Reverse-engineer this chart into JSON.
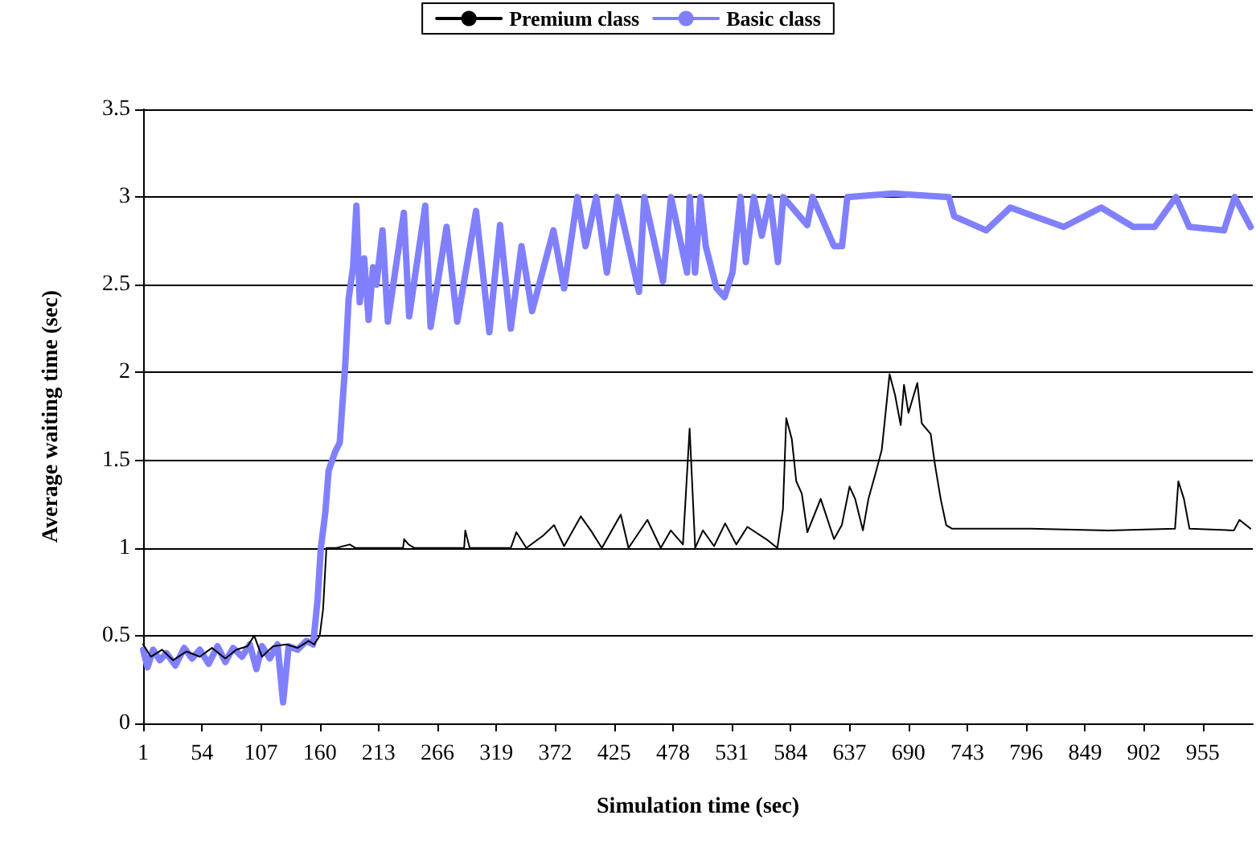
{
  "chart_data": {
    "type": "line",
    "xlabel": "Simulation time (sec)",
    "ylabel": "Average waiting time (sec)",
    "xlim": [
      1,
      1000
    ],
    "xticks": [
      1,
      54,
      107,
      160,
      213,
      266,
      319,
      372,
      425,
      478,
      531,
      584,
      637,
      690,
      743,
      796,
      849,
      902,
      955
    ],
    "ylim": [
      0,
      3.5
    ],
    "yticks": [
      0,
      0.5,
      1,
      1.5,
      2,
      2.5,
      3,
      3.5
    ],
    "grid": "y",
    "legend": "top",
    "marker": "none",
    "line_style": "solid",
    "series": [
      {
        "name": "Premium class",
        "color": "#000000",
        "x": [
          1,
          8,
          18,
          28,
          40,
          52,
          63,
          75,
          85,
          95,
          101,
          108,
          118,
          130,
          140,
          150,
          155,
          160,
          163,
          166,
          175,
          187,
          192,
          235,
          236,
          240,
          245,
          290,
          291,
          295,
          332,
          337,
          346,
          361,
          371,
          380,
          395,
          404,
          414,
          431,
          438,
          455,
          467,
          476,
          487,
          493,
          498,
          505,
          515,
          525,
          535,
          545,
          562,
          572,
          577,
          580,
          585,
          589,
          594,
          599,
          611,
          623,
          630,
          637,
          642,
          649,
          654,
          661,
          666,
          673,
          678,
          683,
          686,
          690,
          698,
          702,
          710,
          714,
          719,
          724,
          729,
          800,
          870,
          930,
          933,
          938,
          943,
          983,
          988,
          998
        ],
        "values": [
          0.45,
          0.38,
          0.42,
          0.36,
          0.41,
          0.38,
          0.43,
          0.37,
          0.42,
          0.44,
          0.5,
          0.38,
          0.44,
          0.45,
          0.43,
          0.47,
          0.45,
          0.5,
          0.65,
          1.0,
          1.0,
          1.02,
          1.0,
          1.0,
          1.05,
          1.02,
          1.0,
          1.0,
          1.1,
          1.0,
          1.0,
          1.09,
          1.0,
          1.07,
          1.13,
          1.01,
          1.18,
          1.1,
          1.0,
          1.19,
          1.0,
          1.16,
          1.0,
          1.1,
          1.02,
          1.68,
          1.0,
          1.1,
          1.01,
          1.14,
          1.02,
          1.12,
          1.05,
          1.0,
          1.22,
          1.74,
          1.62,
          1.38,
          1.31,
          1.09,
          1.28,
          1.05,
          1.13,
          1.35,
          1.28,
          1.1,
          1.28,
          1.44,
          1.56,
          1.99,
          1.87,
          1.7,
          1.93,
          1.77,
          1.94,
          1.71,
          1.65,
          1.47,
          1.28,
          1.13,
          1.11,
          1.11,
          1.1,
          1.11,
          1.38,
          1.28,
          1.11,
          1.1,
          1.16,
          1.11
        ]
      },
      {
        "name": "Basic class",
        "color": "#8080ff",
        "x": [
          1,
          5,
          10,
          16,
          22,
          30,
          38,
          45,
          52,
          60,
          68,
          75,
          82,
          90,
          97,
          103,
          108,
          115,
          122,
          127,
          132,
          140,
          148,
          154,
          158,
          161,
          165,
          168,
          174,
          178,
          183,
          186,
          190,
          193,
          196,
          200,
          204,
          208,
          211,
          216.5,
          221.3,
          235.7,
          240.5,
          255,
          259.8,
          274.2,
          283.8,
          300.7,
          312.7,
          322.3,
          332,
          341.6,
          351.2,
          370.4,
          380,
          392,
          399.3,
          408.9,
          418.5,
          428.1,
          447.4,
          452.2,
          469,
          476.2,
          490.7,
          493.1,
          497.9,
          502.7,
          507.5,
          517.2,
          524.4,
          531.6,
          538.8,
          543.6,
          550.8,
          558,
          565.3,
          572.5,
          577.3,
          598.9,
          603.7,
          623,
          630.2,
          635,
          675.9,
          726.4,
          731.2,
          760,
          781.7,
          829.8,
          863.5,
          892.3,
          911.6,
          930.8,
          942.8,
          974.1,
          983.7,
          998
        ],
        "values": [
          0.42,
          0.32,
          0.42,
          0.36,
          0.4,
          0.33,
          0.43,
          0.37,
          0.42,
          0.34,
          0.44,
          0.35,
          0.43,
          0.38,
          0.45,
          0.31,
          0.44,
          0.37,
          0.45,
          0.12,
          0.44,
          0.42,
          0.47,
          0.45,
          0.7,
          1.0,
          1.2,
          1.44,
          1.55,
          1.6,
          2.05,
          2.42,
          2.6,
          2.95,
          2.4,
          2.65,
          2.3,
          2.6,
          2.5,
          2.81,
          2.29,
          2.91,
          2.32,
          2.95,
          2.26,
          2.83,
          2.29,
          2.92,
          2.23,
          2.84,
          2.25,
          2.72,
          2.35,
          2.81,
          2.48,
          3.0,
          2.72,
          3.0,
          2.57,
          3.0,
          2.46,
          3.0,
          2.52,
          3.0,
          2.57,
          3.0,
          2.57,
          3.0,
          2.72,
          2.48,
          2.43,
          2.57,
          3.0,
          2.63,
          3.0,
          2.78,
          3.0,
          2.63,
          3.0,
          2.84,
          3.0,
          2.72,
          2.72,
          3.0,
          3.02,
          3.0,
          2.89,
          2.81,
          2.94,
          2.83,
          2.94,
          2.83,
          2.83,
          3.0,
          2.83,
          2.81,
          3.0,
          2.83
        ]
      }
    ]
  }
}
